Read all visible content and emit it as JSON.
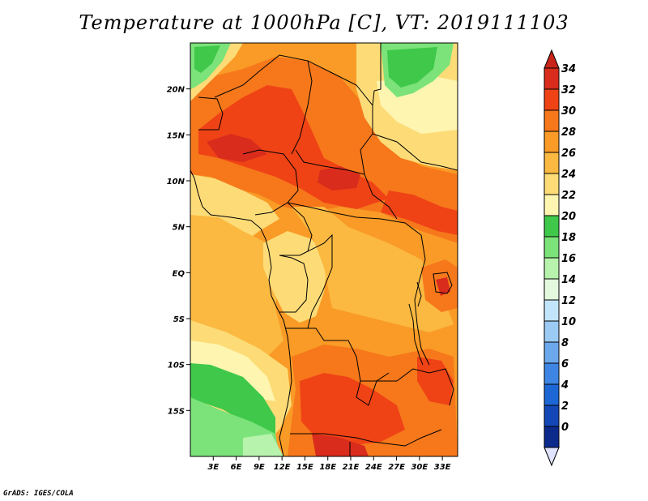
{
  "title": "Temperature at 1000hPa [C], VT: 2019111103",
  "credit": "GrADS: IGES/COLA",
  "map": {
    "lon_range": [
      0,
      35
    ],
    "lat_range": [
      -20,
      25
    ],
    "lon_ticks": [
      {
        "value": 3,
        "label": "3E"
      },
      {
        "value": 6,
        "label": "6E"
      },
      {
        "value": 9,
        "label": "9E"
      },
      {
        "value": 12,
        "label": "12E"
      },
      {
        "value": 15,
        "label": "15E"
      },
      {
        "value": 18,
        "label": "18E"
      },
      {
        "value": 21,
        "label": "21E"
      },
      {
        "value": 24,
        "label": "24E"
      },
      {
        "value": 27,
        "label": "27E"
      },
      {
        "value": 30,
        "label": "30E"
      },
      {
        "value": 33,
        "label": "33E"
      }
    ],
    "lat_ticks": [
      {
        "value": 20,
        "label": "20N"
      },
      {
        "value": 15,
        "label": "15N"
      },
      {
        "value": 10,
        "label": "10N"
      },
      {
        "value": 5,
        "label": "5N"
      },
      {
        "value": 0,
        "label": "EQ"
      },
      {
        "value": -5,
        "label": "5S"
      },
      {
        "value": -10,
        "label": "10S"
      },
      {
        "value": -15,
        "label": "15S"
      }
    ]
  },
  "legend": {
    "levels": [
      {
        "label": "34",
        "color": "#d92c1c"
      },
      {
        "label": "32",
        "color": "#ef4316"
      },
      {
        "label": "30",
        "color": "#f6781b"
      },
      {
        "label": "28",
        "color": "#f99b26"
      },
      {
        "label": "26",
        "color": "#fbb941"
      },
      {
        "label": "24",
        "color": "#fddc78"
      },
      {
        "label": "22",
        "color": "#fef5b0"
      },
      {
        "label": "20",
        "color": "#3fc84a"
      },
      {
        "label": "18",
        "color": "#7be37a"
      },
      {
        "label": "16",
        "color": "#b7f3ad"
      },
      {
        "label": "14",
        "color": "#e3f9de"
      },
      {
        "label": "12",
        "color": "#c3e5fb"
      },
      {
        "label": "10",
        "color": "#9bcaf5"
      },
      {
        "label": "8",
        "color": "#6ca8ec"
      },
      {
        "label": "6",
        "color": "#3f86e4"
      },
      {
        "label": "4",
        "color": "#1d66d6"
      },
      {
        "label": "2",
        "color": "#1346b6"
      },
      {
        "label": "0",
        "color": "#0b2a8c"
      }
    ],
    "overflow_top_color": "#c8241a",
    "underflow_bottom_color": "#e0e4ff"
  }
}
